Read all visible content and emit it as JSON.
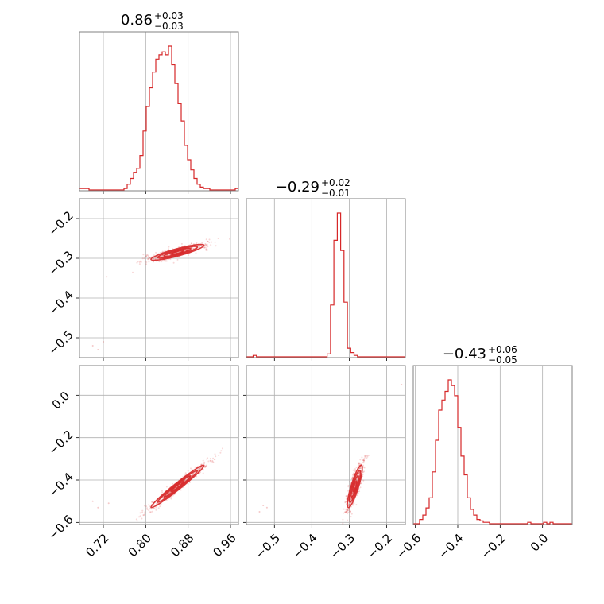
{
  "colors": {
    "accent": "#d62728",
    "grid": "#b0b0b0",
    "frame": "#808080"
  },
  "chart_data": [
    {
      "type": "histogram",
      "panel": "x0-marginal",
      "title": {
        "value": "0.86",
        "plus": "+0.03",
        "minus": "−0.03"
      },
      "xlim": [
        0.675,
        0.975
      ],
      "grid_x": [
        0.72,
        0.8,
        0.88,
        0.96
      ],
      "bins": {
        "start": 0.675,
        "width": 0.006
      },
      "heights": [
        0.01,
        0.01,
        0.01,
        0,
        0,
        0,
        0,
        0,
        0,
        0,
        0,
        0,
        0,
        0,
        0.01,
        0.04,
        0.08,
        0.12,
        0.15,
        0.24,
        0.41,
        0.58,
        0.71,
        0.82,
        0.91,
        0.94,
        0.96,
        0.94,
        1.0,
        0.87,
        0.74,
        0.6,
        0.48,
        0.31,
        0.21,
        0.14,
        0.08,
        0.04,
        0.02,
        0.01,
        0.01,
        0,
        0,
        0,
        0,
        0,
        0,
        0,
        0,
        0.01
      ]
    },
    {
      "type": "scatter-contour",
      "panel": "x0-vs-x1",
      "xlim": [
        0.675,
        0.975
      ],
      "ylim": [
        -0.55,
        -0.15
      ],
      "grid_x": [
        0.72,
        0.8,
        0.88,
        0.96
      ],
      "grid_y": [
        -0.2,
        -0.3,
        -0.4,
        -0.5
      ],
      "y_tick_labels": [
        "−0.2",
        "−0.3",
        "−0.4",
        "−0.5"
      ],
      "center": [
        0.86,
        -0.285
      ],
      "sd": [
        0.025,
        0.01
      ],
      "corr": 0.88,
      "outliers": [
        [
          0.7,
          -0.52
        ],
        [
          0.71,
          -0.53
        ],
        [
          0.72,
          -0.51
        ]
      ]
    },
    {
      "type": "histogram",
      "panel": "x1-marginal",
      "title": {
        "value": "−0.29",
        "plus": "+0.02",
        "minus": "−0.01"
      },
      "xlim": [
        -0.575,
        -0.15
      ],
      "grid_x": [
        -0.5,
        -0.4,
        -0.3,
        -0.2
      ],
      "bins": {
        "start": -0.575,
        "width": 0.009
      },
      "heights": [
        0,
        0,
        0.01,
        0,
        0,
        0,
        0,
        0,
        0,
        0,
        0,
        0,
        0,
        0,
        0,
        0,
        0,
        0,
        0,
        0,
        0,
        0,
        0,
        0,
        0.02,
        0.36,
        0.81,
        1.0,
        0.74,
        0.38,
        0.06,
        0.03,
        0.01,
        0,
        0,
        0,
        0,
        0,
        0,
        0,
        0,
        0,
        0,
        0,
        0,
        0,
        0
      ]
    },
    {
      "type": "scatter-contour",
      "panel": "x0-vs-x2",
      "xlim": [
        0.675,
        0.975
      ],
      "ylim": [
        -0.61,
        0.14
      ],
      "grid_x": [
        0.72,
        0.8,
        0.88,
        0.96
      ],
      "grid_y": [
        0.0,
        -0.2,
        -0.4,
        -0.6
      ],
      "x_tick_labels": [
        "0.72",
        "0.80",
        "0.88",
        "0.96"
      ],
      "y_tick_labels": [
        "0.0",
        "−0.2",
        "−0.4",
        "−0.6"
      ],
      "center": [
        0.86,
        -0.43
      ],
      "sd": [
        0.025,
        0.05
      ],
      "corr": 0.98,
      "outliers": [
        [
          0.7,
          -0.5
        ],
        [
          0.71,
          -0.53
        ],
        [
          0.73,
          -0.51
        ]
      ]
    },
    {
      "type": "scatter-contour",
      "panel": "x1-vs-x2",
      "xlim": [
        -0.575,
        -0.15
      ],
      "ylim": [
        -0.61,
        0.14
      ],
      "grid_x": [
        -0.5,
        -0.4,
        -0.3,
        -0.2
      ],
      "grid_y": [
        0.0,
        -0.2,
        -0.4,
        -0.6
      ],
      "x_tick_labels": [
        "−0.5",
        "−0.4",
        "−0.3",
        "−0.2"
      ],
      "center": [
        -0.285,
        -0.43
      ],
      "sd": [
        0.01,
        0.05
      ],
      "corr": 0.85,
      "outliers": [
        [
          -0.53,
          -0.52
        ],
        [
          -0.54,
          -0.55
        ],
        [
          -0.52,
          -0.53
        ],
        [
          -0.16,
          0.05
        ]
      ]
    },
    {
      "type": "histogram",
      "panel": "x2-marginal",
      "title": {
        "value": "−0.43",
        "plus": "+0.06",
        "minus": "−0.05"
      },
      "xlim": [
        -0.61,
        0.14
      ],
      "grid_x": [
        -0.6,
        -0.4,
        -0.2,
        0.0
      ],
      "x_tick_labels": [
        "−0.6",
        "−0.4",
        "−0.2",
        "0.0"
      ],
      "bins": {
        "start": -0.61,
        "width": 0.015
      },
      "heights": [
        0,
        0,
        0.03,
        0.06,
        0.11,
        0.18,
        0.36,
        0.58,
        0.79,
        0.86,
        0.92,
        1.0,
        0.96,
        0.89,
        0.67,
        0.47,
        0.34,
        0.18,
        0.1,
        0.06,
        0.03,
        0.02,
        0.01,
        0.01,
        0,
        0,
        0,
        0,
        0,
        0,
        0,
        0,
        0,
        0,
        0,
        0,
        0.01,
        0,
        0,
        0,
        0,
        0.01,
        0,
        0.01,
        0,
        0,
        0,
        0,
        0,
        0
      ]
    }
  ]
}
